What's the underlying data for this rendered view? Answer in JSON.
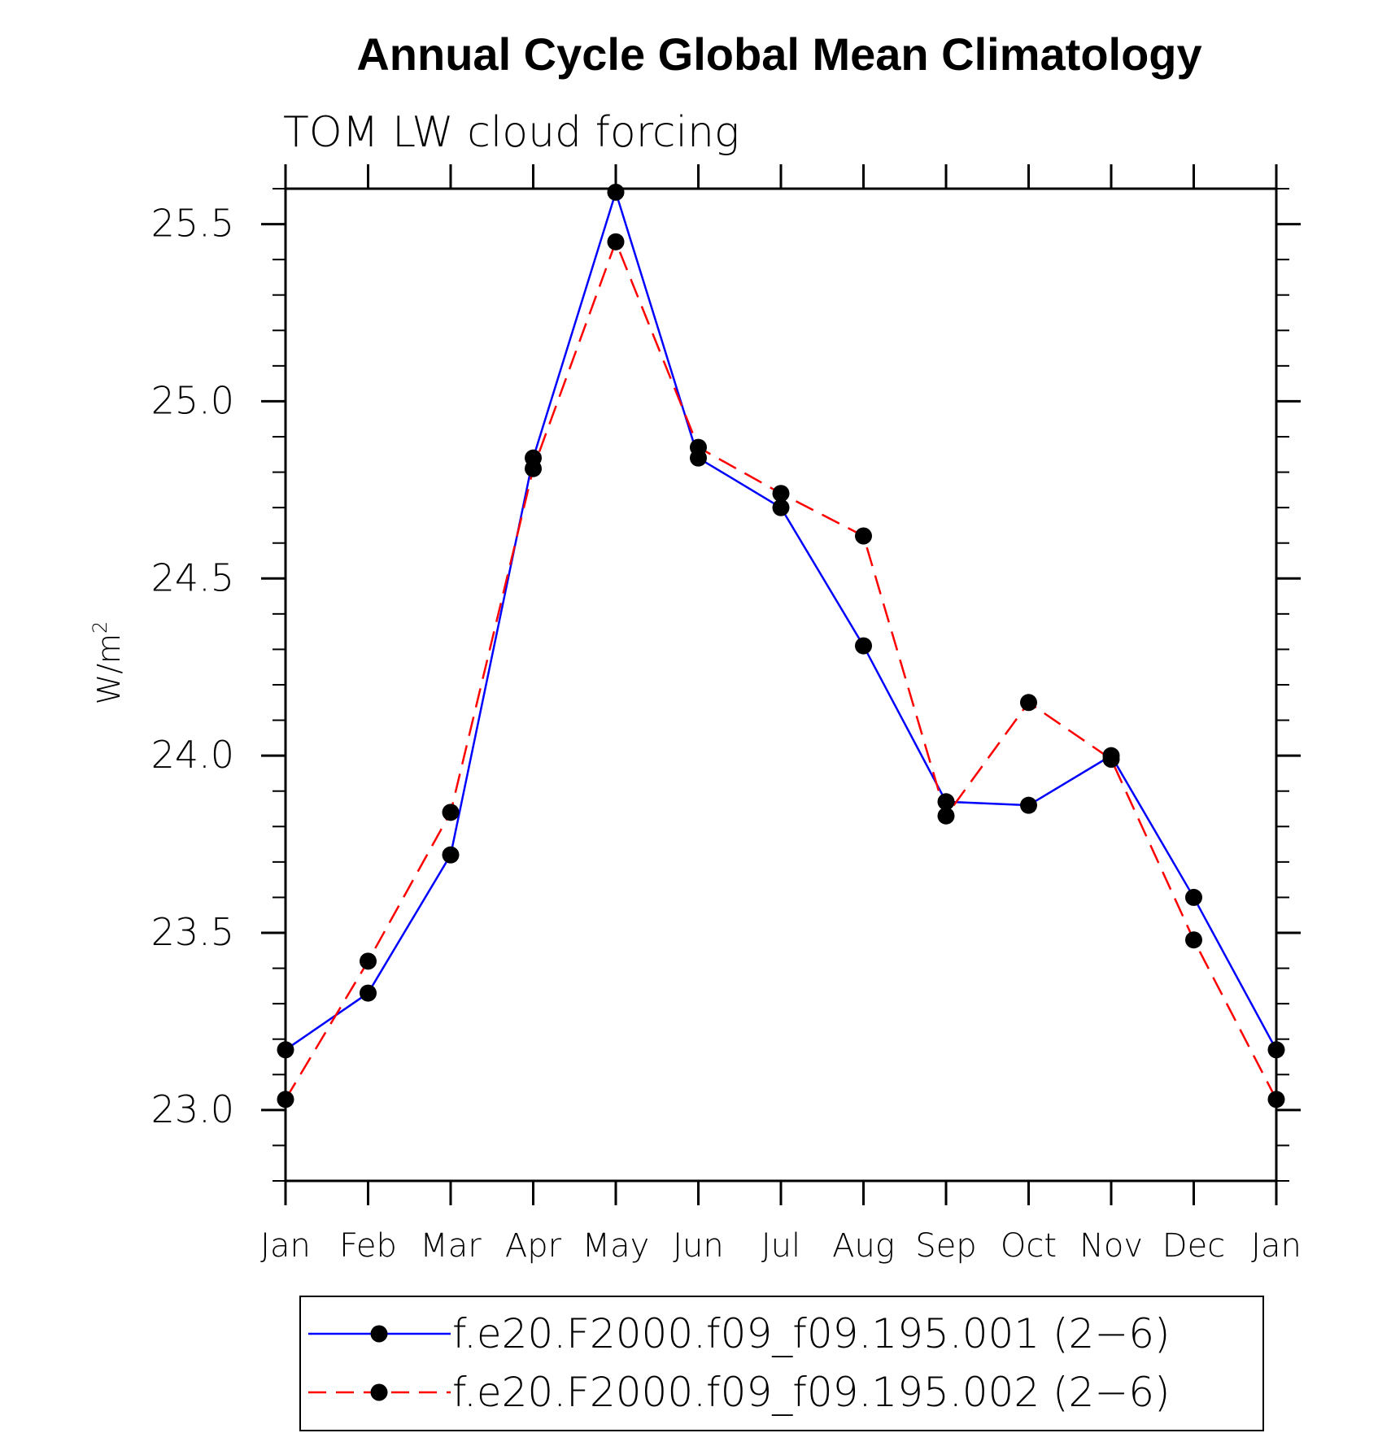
{
  "chart_data": {
    "type": "line",
    "title": "Annual Cycle Global Mean Climatology",
    "subtitle": "TOM LW cloud forcing",
    "ylabel": "W/m",
    "ylabel_superscript": "2",
    "xlabel": "",
    "categories": [
      "Jan",
      "Feb",
      "Mar",
      "Apr",
      "May",
      "Jun",
      "Jul",
      "Aug",
      "Sep",
      "Oct",
      "Nov",
      "Dec",
      "Jan"
    ],
    "ylim": [
      22.8,
      25.6
    ],
    "yticks": [
      "23.0",
      "23.5",
      "24.0",
      "24.5",
      "25.0",
      "25.5"
    ],
    "grid": false,
    "legend_position": "bottom",
    "series": [
      {
        "name": "f.e20.F2000.f09_f09.195.001 (2−6)",
        "color": "#0000ff",
        "dash": "solid",
        "marker": "filled-circle",
        "values": [
          23.17,
          23.33,
          23.72,
          24.84,
          25.59,
          24.84,
          24.7,
          24.31,
          23.87,
          23.86,
          24.0,
          23.6,
          23.17
        ]
      },
      {
        "name": "f.e20.F2000.f09_f09.195.002 (2−6)",
        "color": "#ff0000",
        "dash": "dashed",
        "marker": "filled-circle",
        "values": [
          23.03,
          23.42,
          23.84,
          24.81,
          25.45,
          24.87,
          24.74,
          24.62,
          23.83,
          24.15,
          23.99,
          23.48,
          23.03
        ]
      }
    ]
  }
}
